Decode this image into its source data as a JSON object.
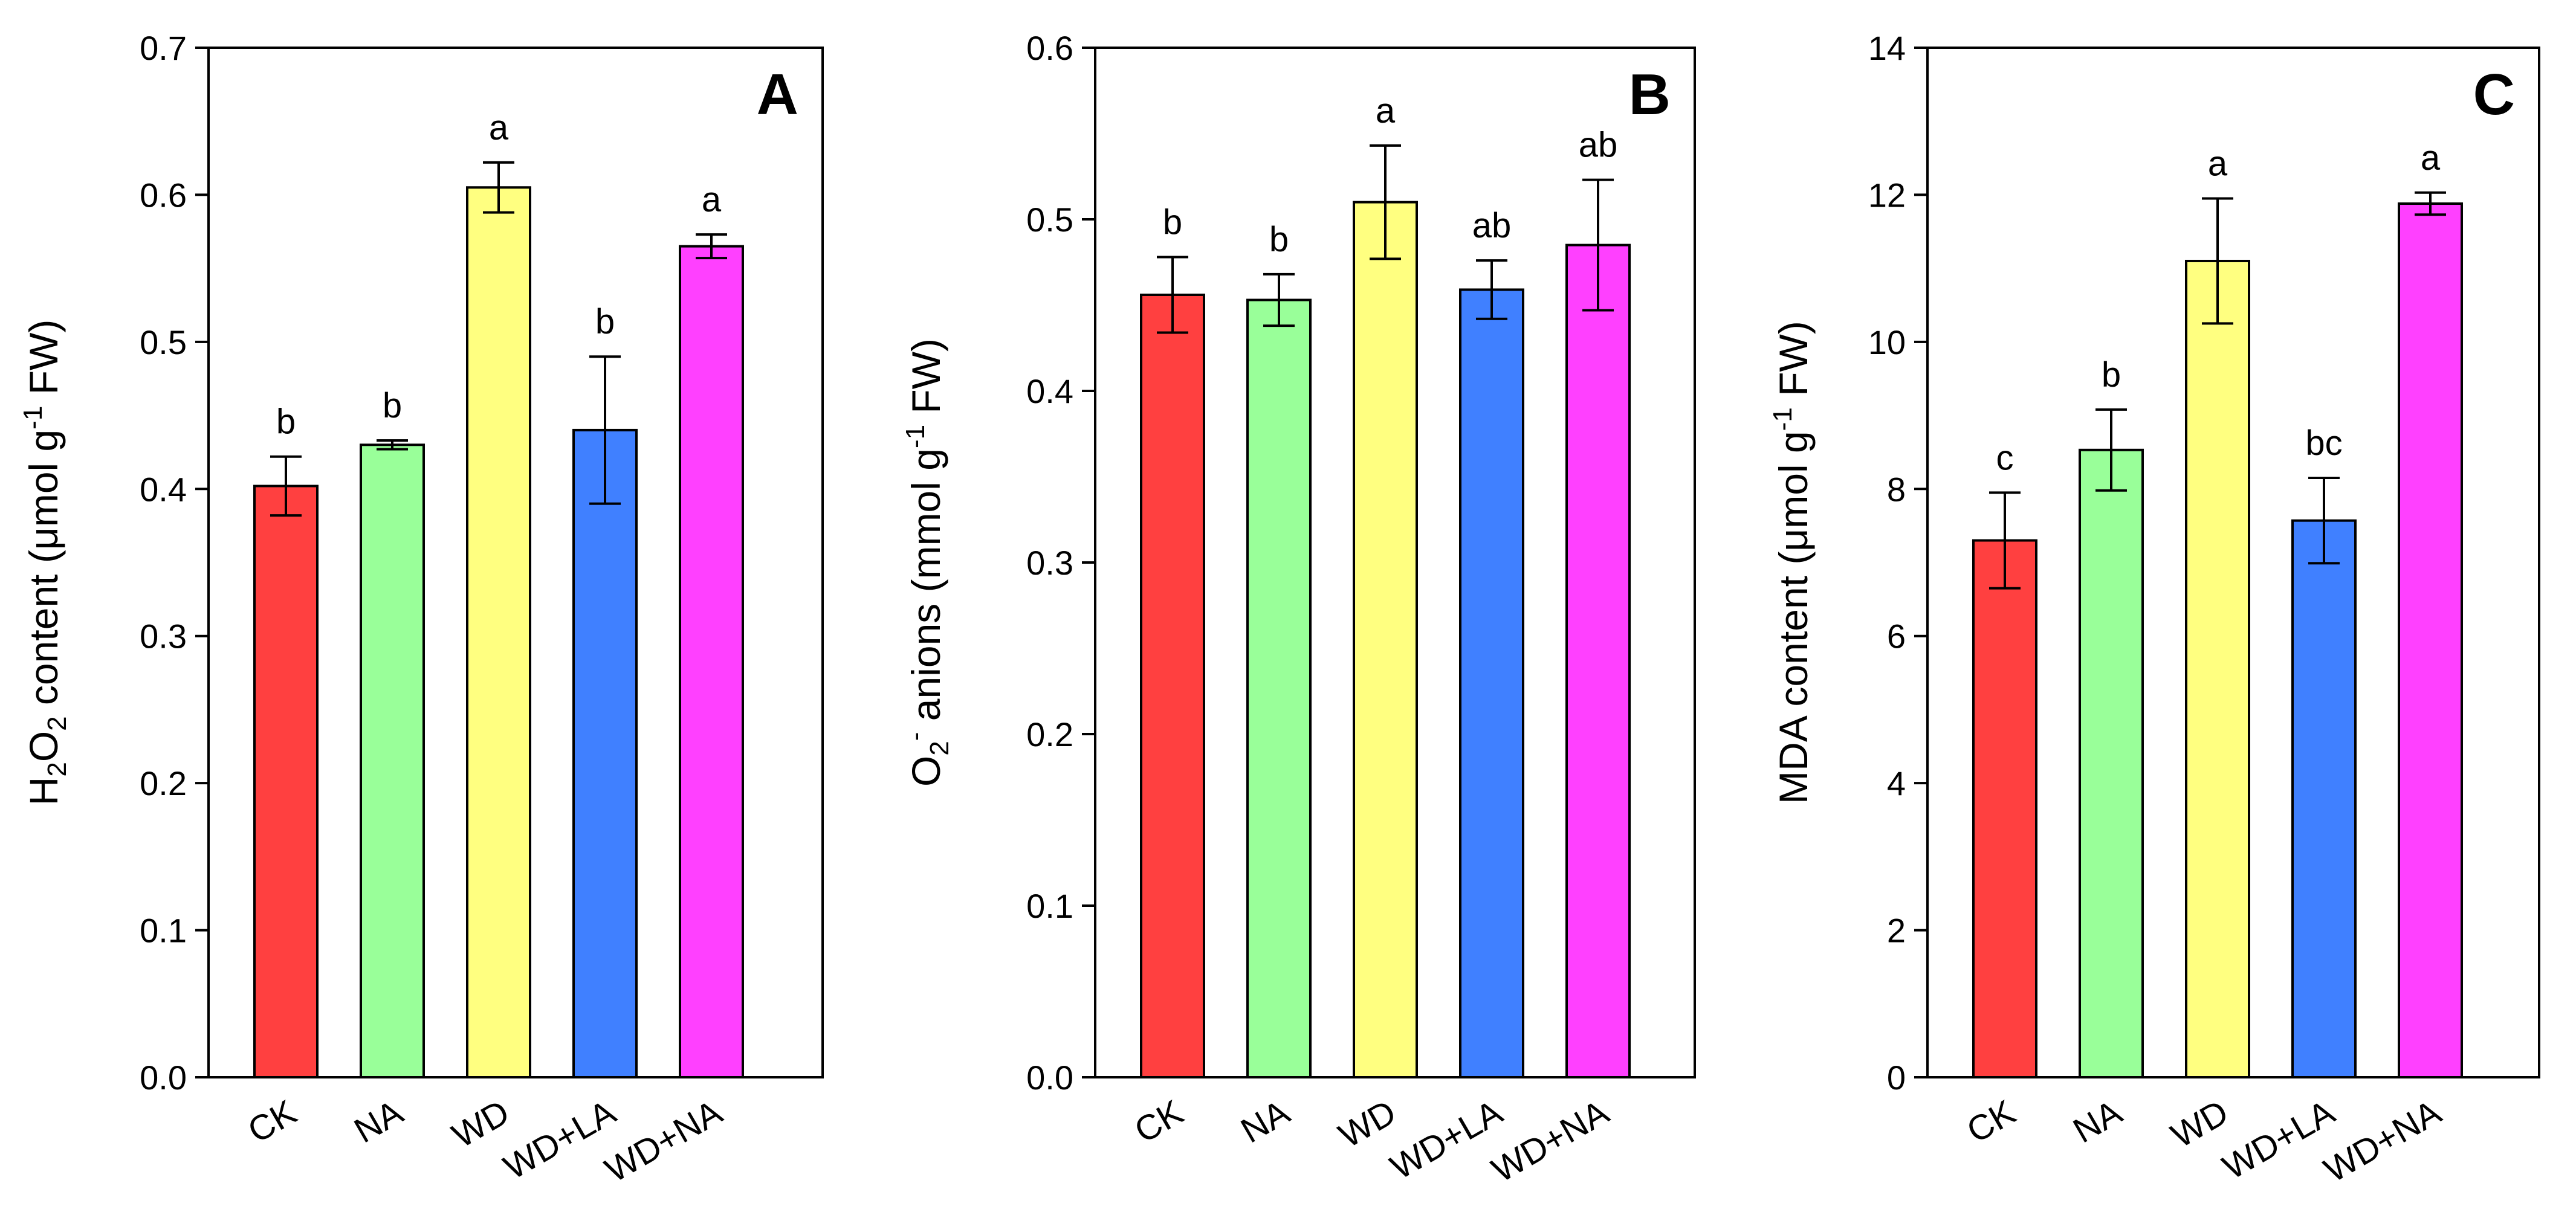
{
  "chart_data": [
    {
      "type": "bar",
      "panel": "A",
      "ylabel": {
        "base": "H",
        "sub1": "2",
        "mid": "O",
        "sub2": "2",
        "rest": " content (μmol g",
        "sup": "-1",
        "end": " FW)"
      },
      "ylim": [
        0,
        0.7
      ],
      "yticks": [
        "0.0",
        "0.1",
        "0.2",
        "0.3",
        "0.4",
        "0.5",
        "0.6",
        "0.7"
      ],
      "yticks_values": [
        0,
        0.1,
        0.2,
        0.3,
        0.4,
        0.5,
        0.6,
        0.7
      ],
      "categories": [
        "CK",
        "NA",
        "WD",
        "WD+LA",
        "WD+NA"
      ],
      "values": [
        0.402,
        0.43,
        0.605,
        0.44,
        0.565
      ],
      "errors": [
        0.02,
        0.003,
        0.017,
        0.05,
        0.008
      ],
      "letters": [
        "b",
        "b",
        "a",
        "b",
        "a"
      ],
      "colors": [
        "#ff4040",
        "#99ff99",
        "#ffff80",
        "#4080ff",
        "#ff40ff"
      ]
    },
    {
      "type": "bar",
      "panel": "B",
      "ylabel": {
        "base": "O",
        "sub1": "2",
        "sup1": "-",
        "rest": " anions (mmol g",
        "sup": "-1",
        "end": " FW)"
      },
      "ylim": [
        0,
        0.6
      ],
      "yticks": [
        "0.0",
        "0.1",
        "0.2",
        "0.3",
        "0.4",
        "0.5",
        "0.6"
      ],
      "yticks_values": [
        0,
        0.1,
        0.2,
        0.3,
        0.4,
        0.5,
        0.6
      ],
      "categories": [
        "CK",
        "NA",
        "WD",
        "WD+LA",
        "WD+NA"
      ],
      "values": [
        0.456,
        0.453,
        0.51,
        0.459,
        0.485
      ],
      "errors": [
        0.022,
        0.015,
        0.033,
        0.017,
        0.038
      ],
      "letters": [
        "b",
        "b",
        "a",
        "ab",
        "ab"
      ],
      "colors": [
        "#ff4040",
        "#99ff99",
        "#ffff80",
        "#4080ff",
        "#ff40ff"
      ]
    },
    {
      "type": "bar",
      "panel": "C",
      "ylabel": {
        "rest": "MDA content (μmol g",
        "sup": "-1",
        "end": " FW)"
      },
      "ylim": [
        0,
        14
      ],
      "yticks": [
        "0",
        "2",
        "4",
        "6",
        "8",
        "10",
        "12",
        "14"
      ],
      "yticks_values": [
        0,
        2,
        4,
        6,
        8,
        10,
        12,
        14
      ],
      "categories": [
        "CK",
        "NA",
        "WD",
        "WD+LA",
        "WD+NA"
      ],
      "values": [
        7.3,
        8.53,
        11.1,
        7.57,
        11.88
      ],
      "errors": [
        0.65,
        0.55,
        0.85,
        0.58,
        0.15
      ],
      "letters": [
        "c",
        "b",
        "a",
        "bc",
        "a"
      ],
      "colors": [
        "#ff4040",
        "#99ff99",
        "#ffff80",
        "#4080ff",
        "#ff40ff"
      ]
    }
  ]
}
